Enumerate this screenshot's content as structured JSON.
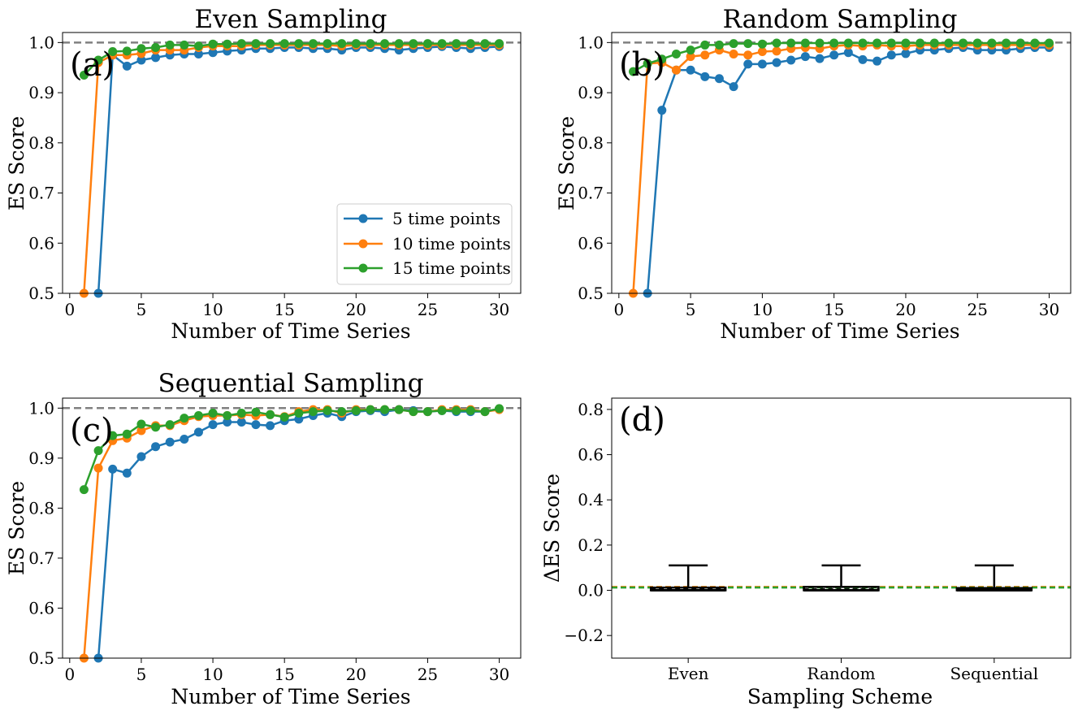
{
  "figure": {
    "colors": {
      "series_5": "#1f77b4",
      "series_10": "#ff7f0e",
      "series_15": "#2ca02c",
      "reference_line": "#808080",
      "axes": "#000000"
    }
  },
  "chart_data": [
    {
      "panel": "(a)",
      "type": "line",
      "title": "Even Sampling",
      "xlabel": "Number of Time Series",
      "ylabel": "ES Score",
      "xlim": [
        -0.5,
        31.5
      ],
      "ylim": [
        0.5,
        1.02
      ],
      "xticks": [
        0,
        5,
        10,
        15,
        20,
        25,
        30
      ],
      "xtick_labels": [
        "0",
        "5",
        "10",
        "15",
        "20",
        "25",
        "30"
      ],
      "yticks": [
        0.5,
        0.6,
        0.7,
        0.8,
        0.9,
        1.0
      ],
      "ytick_labels": [
        "0.5",
        "0.6",
        "0.7",
        "0.8",
        "0.9",
        "1.0"
      ],
      "reference_line": 1.0,
      "legend": "lower-right",
      "series": [
        {
          "name": "5 time points",
          "color": "#1f77b4",
          "x": [
            2,
            3,
            4,
            5,
            6,
            7,
            8,
            9,
            10,
            11,
            12,
            13,
            14,
            15,
            16,
            17,
            18,
            19,
            20,
            21,
            22,
            23,
            24,
            25,
            26,
            27,
            28,
            29,
            30
          ],
          "y": [
            0.5,
            0.975,
            0.953,
            0.965,
            0.97,
            0.975,
            0.977,
            0.977,
            0.98,
            0.983,
            0.985,
            0.988,
            0.988,
            0.99,
            0.99,
            0.988,
            0.988,
            0.985,
            0.99,
            0.99,
            0.988,
            0.985,
            0.988,
            0.99,
            0.992,
            0.99,
            0.988,
            0.99,
            0.992
          ]
        },
        {
          "name": "10 time points",
          "color": "#ff7f0e",
          "x": [
            1,
            2,
            3,
            4,
            5,
            6,
            7,
            8,
            9,
            10,
            11,
            12,
            13,
            14,
            15,
            16,
            17,
            18,
            19,
            20,
            21,
            22,
            23,
            24,
            25,
            26,
            27,
            28,
            29,
            30
          ],
          "y": [
            0.5,
            0.96,
            0.975,
            0.975,
            0.978,
            0.985,
            0.985,
            0.985,
            0.99,
            0.993,
            0.993,
            0.993,
            0.995,
            0.995,
            0.995,
            0.995,
            0.995,
            0.995,
            0.993,
            0.995,
            0.995,
            0.995,
            0.995,
            0.995,
            0.995,
            0.995,
            0.995,
            0.995,
            0.995,
            0.995
          ]
        },
        {
          "name": "15 time points",
          "color": "#2ca02c",
          "x": [
            1,
            2,
            3,
            4,
            5,
            6,
            7,
            8,
            9,
            10,
            11,
            12,
            13,
            14,
            15,
            16,
            17,
            18,
            19,
            20,
            21,
            22,
            23,
            24,
            25,
            26,
            27,
            28,
            29,
            30
          ],
          "y": [
            0.935,
            0.965,
            0.982,
            0.983,
            0.988,
            0.99,
            0.995,
            0.995,
            0.993,
            0.997,
            0.997,
            0.998,
            0.998,
            0.998,
            0.998,
            0.998,
            0.998,
            0.998,
            0.998,
            0.998,
            0.998,
            0.998,
            0.998,
            0.998,
            0.998,
            0.998,
            0.998,
            0.998,
            0.998,
            0.998
          ]
        }
      ]
    },
    {
      "panel": "(b)",
      "type": "line",
      "title": "Random Sampling",
      "xlabel": "Number of Time Series",
      "ylabel": "ES Score",
      "xlim": [
        -0.5,
        31.5
      ],
      "ylim": [
        0.5,
        1.02
      ],
      "xticks": [
        0,
        5,
        10,
        15,
        20,
        25,
        30
      ],
      "xtick_labels": [
        "0",
        "5",
        "10",
        "15",
        "20",
        "25",
        "30"
      ],
      "yticks": [
        0.5,
        0.6,
        0.7,
        0.8,
        0.9,
        1.0
      ],
      "ytick_labels": [
        "0.5",
        "0.6",
        "0.7",
        "0.8",
        "0.9",
        "1.0"
      ],
      "reference_line": 1.0,
      "series": [
        {
          "name": "5 time points",
          "color": "#1f77b4",
          "x": [
            2,
            3,
            4,
            5,
            6,
            7,
            8,
            9,
            10,
            11,
            12,
            13,
            14,
            15,
            16,
            17,
            18,
            19,
            20,
            21,
            22,
            23,
            24,
            25,
            26,
            27,
            28,
            29,
            30
          ],
          "y": [
            0.5,
            0.865,
            0.945,
            0.945,
            0.932,
            0.928,
            0.912,
            0.957,
            0.957,
            0.96,
            0.965,
            0.972,
            0.968,
            0.975,
            0.98,
            0.966,
            0.963,
            0.975,
            0.978,
            0.985,
            0.985,
            0.988,
            0.99,
            0.985,
            0.985,
            0.985,
            0.988,
            0.99,
            0.99
          ]
        },
        {
          "name": "10 time points",
          "color": "#ff7f0e",
          "x": [
            1,
            2,
            3,
            4,
            5,
            6,
            7,
            8,
            9,
            10,
            11,
            12,
            13,
            14,
            15,
            16,
            17,
            18,
            19,
            20,
            21,
            22,
            23,
            24,
            25,
            26,
            27,
            28,
            29,
            30
          ],
          "y": [
            0.5,
            0.958,
            0.96,
            0.945,
            0.972,
            0.975,
            0.985,
            0.977,
            0.975,
            0.982,
            0.983,
            0.988,
            0.99,
            0.988,
            0.993,
            0.995,
            0.993,
            0.995,
            0.993,
            0.993,
            0.995,
            0.995,
            0.995,
            0.995,
            0.995,
            0.995,
            0.995,
            0.995,
            0.995,
            0.995
          ]
        },
        {
          "name": "15 time points",
          "color": "#2ca02c",
          "x": [
            1,
            2,
            3,
            4,
            5,
            6,
            7,
            8,
            9,
            10,
            11,
            12,
            13,
            14,
            15,
            16,
            17,
            18,
            19,
            20,
            21,
            22,
            23,
            24,
            25,
            26,
            27,
            28,
            29,
            30
          ],
          "y": [
            0.942,
            0.958,
            0.967,
            0.977,
            0.985,
            0.995,
            0.995,
            0.998,
            0.998,
            0.997,
            0.999,
            0.999,
            0.999,
            0.999,
            0.999,
            0.999,
            0.999,
            0.999,
            0.999,
            0.999,
            0.999,
            0.999,
            0.999,
            0.999,
            0.999,
            0.999,
            0.999,
            0.999,
            0.999,
            0.999
          ]
        }
      ]
    },
    {
      "panel": "(c)",
      "type": "line",
      "title": "Sequential Sampling",
      "xlabel": "Number of Time Series",
      "ylabel": "ES Score",
      "xlim": [
        -0.5,
        31.5
      ],
      "ylim": [
        0.5,
        1.02
      ],
      "xticks": [
        0,
        5,
        10,
        15,
        20,
        25,
        30
      ],
      "xtick_labels": [
        "0",
        "5",
        "10",
        "15",
        "20",
        "25",
        "30"
      ],
      "yticks": [
        0.5,
        0.6,
        0.7,
        0.8,
        0.9,
        1.0
      ],
      "ytick_labels": [
        "0.5",
        "0.6",
        "0.7",
        "0.8",
        "0.9",
        "1.0"
      ],
      "reference_line": 1.0,
      "series": [
        {
          "name": "5 time points",
          "color": "#1f77b4",
          "x": [
            2,
            3,
            4,
            5,
            6,
            7,
            8,
            9,
            10,
            11,
            12,
            13,
            14,
            15,
            16,
            17,
            18,
            19,
            20,
            21,
            22,
            23,
            24,
            25,
            26,
            27,
            28,
            29,
            30
          ],
          "y": [
            0.5,
            0.878,
            0.87,
            0.903,
            0.923,
            0.932,
            0.938,
            0.952,
            0.967,
            0.972,
            0.972,
            0.967,
            0.965,
            0.975,
            0.978,
            0.985,
            0.99,
            0.983,
            0.993,
            0.995,
            0.993,
            0.997,
            0.995,
            0.993,
            0.995,
            0.993,
            0.993,
            0.993,
            0.998
          ]
        },
        {
          "name": "10 time points",
          "color": "#ff7f0e",
          "x": [
            1,
            2,
            3,
            4,
            5,
            6,
            7,
            8,
            9,
            10,
            11,
            12,
            13,
            14,
            15,
            16,
            17,
            18,
            19,
            20,
            21,
            22,
            23,
            24,
            25,
            26,
            27,
            28,
            29,
            30
          ],
          "y": [
            0.5,
            0.88,
            0.935,
            0.94,
            0.955,
            0.965,
            0.965,
            0.975,
            0.983,
            0.985,
            0.985,
            0.987,
            0.985,
            0.987,
            0.983,
            0.993,
            0.997,
            0.997,
            0.99,
            0.997,
            0.997,
            0.997,
            0.997,
            0.993,
            0.993,
            0.997,
            0.997,
            0.997,
            0.993,
            0.997
          ]
        },
        {
          "name": "15 time points",
          "color": "#2ca02c",
          "x": [
            1,
            2,
            3,
            4,
            5,
            6,
            7,
            8,
            9,
            10,
            11,
            12,
            13,
            14,
            15,
            16,
            17,
            18,
            19,
            20,
            21,
            22,
            23,
            24,
            25,
            26,
            27,
            28,
            29,
            30
          ],
          "y": [
            0.837,
            0.915,
            0.945,
            0.948,
            0.968,
            0.962,
            0.967,
            0.98,
            0.985,
            0.99,
            0.985,
            0.99,
            0.992,
            0.987,
            0.982,
            0.99,
            0.993,
            0.995,
            0.993,
            0.995,
            0.997,
            0.997,
            0.997,
            0.993,
            0.993,
            0.995,
            0.995,
            0.995,
            0.993,
            0.999
          ]
        }
      ]
    },
    {
      "panel": "(d)",
      "type": "box",
      "title": "",
      "xlabel": "Sampling Scheme",
      "ylabel": "ΔES Score",
      "categories": [
        "Even",
        "Random",
        "Sequential"
      ],
      "ylim": [
        -0.3,
        0.85
      ],
      "yticks": [
        -0.2,
        0.0,
        0.2,
        0.4,
        0.6,
        0.8
      ],
      "ytick_labels": [
        "−0.2",
        "0.0",
        "0.2",
        "0.4",
        "0.6",
        "0.8"
      ],
      "boxes": [
        {
          "category": "Even",
          "lower_whisker": 0.0,
          "q1": 0.0,
          "median": 0.005,
          "q3": 0.012,
          "upper_whisker": 0.11
        },
        {
          "category": "Random",
          "lower_whisker": 0.0,
          "q1": 0.0,
          "median": 0.005,
          "q3": 0.015,
          "upper_whisker": 0.11
        },
        {
          "category": "Sequential",
          "lower_whisker": 0.0,
          "q1": 0.0,
          "median": 0.005,
          "q3": 0.01,
          "upper_whisker": 0.11
        }
      ],
      "mean_lines": [
        {
          "color": "#ff7f0e",
          "value": 0.015
        },
        {
          "color": "#2ca02c",
          "value": 0.012
        }
      ]
    }
  ]
}
